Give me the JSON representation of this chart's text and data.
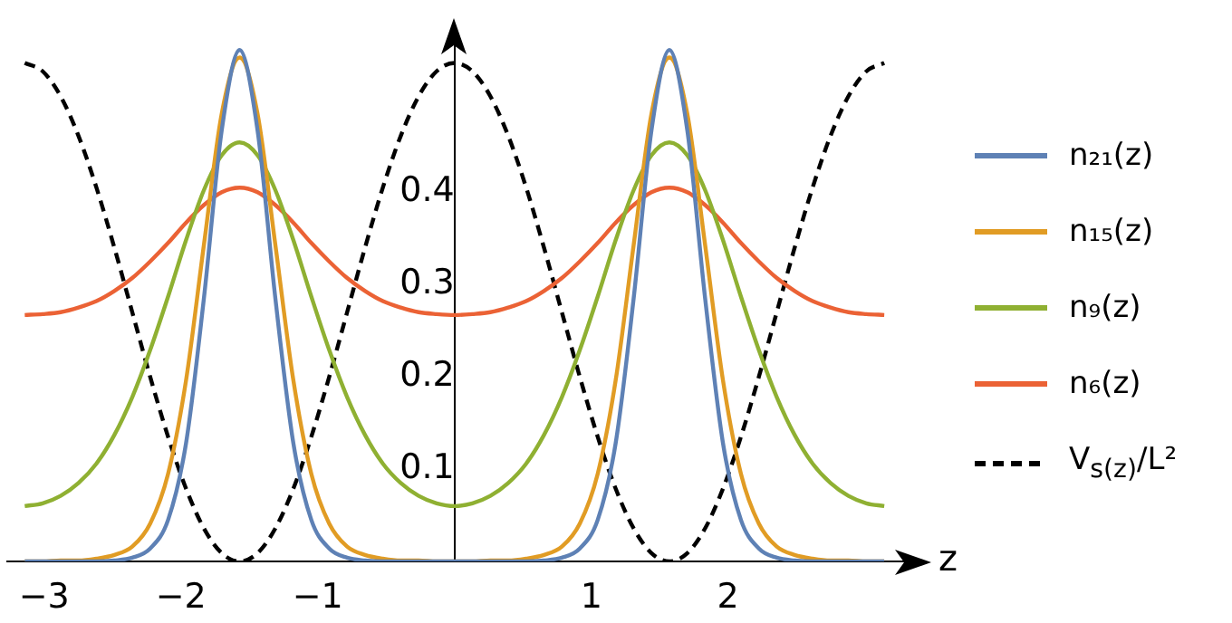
{
  "chart_data": {
    "type": "line",
    "xlabel": "z",
    "x": [
      -3.142,
      -3.011,
      -2.88,
      -2.749,
      -2.618,
      -2.487,
      -2.356,
      -2.225,
      -2.094,
      -1.963,
      -1.833,
      -1.702,
      -1.571,
      -1.44,
      -1.309,
      -1.178,
      -1.047,
      -0.916,
      -0.785,
      -0.654,
      -0.524,
      -0.393,
      -0.262,
      -0.131,
      0,
      0.131,
      0.262,
      0.393,
      0.524,
      0.654,
      0.785,
      0.916,
      1.047,
      1.178,
      1.309,
      1.44,
      1.571,
      1.702,
      1.833,
      1.963,
      2.094,
      2.225,
      2.356,
      2.487,
      2.618,
      2.749,
      2.88,
      3.011,
      3.142
    ],
    "xlim": [
      -3.27,
      3.3
    ],
    "ylim": [
      0,
      0.58
    ],
    "xticks": [
      -3,
      -2,
      -1,
      1,
      2
    ],
    "yticks": [
      0.1,
      0.2,
      0.3,
      0.4
    ],
    "grid": false,
    "legend": "right",
    "marker": "none",
    "series": [
      {
        "name": "n₂₁(z)",
        "color": "#5e81b5",
        "line_style": "solid",
        "values": [
          0,
          0,
          0,
          0,
          0,
          0.001,
          0.004,
          0.014,
          0.045,
          0.128,
          0.284,
          0.467,
          0.554,
          0.467,
          0.284,
          0.128,
          0.045,
          0.014,
          0.004,
          0.001,
          0,
          0,
          0,
          0,
          0,
          0,
          0,
          0,
          0,
          0.001,
          0.004,
          0.014,
          0.045,
          0.128,
          0.284,
          0.467,
          0.554,
          0.467,
          0.284,
          0.128,
          0.045,
          0.014,
          0.004,
          0.001,
          0,
          0,
          0,
          0,
          0
        ]
      },
      {
        "name": "n₁₅(z)",
        "color": "#e19c24",
        "line_style": "solid",
        "values": [
          0,
          0,
          0.001,
          0.001,
          0.003,
          0.007,
          0.016,
          0.041,
          0.095,
          0.196,
          0.342,
          0.485,
          0.546,
          0.485,
          0.342,
          0.196,
          0.095,
          0.041,
          0.016,
          0.007,
          0.003,
          0.001,
          0.001,
          0,
          0,
          0,
          0.001,
          0.001,
          0.003,
          0.007,
          0.016,
          0.041,
          0.095,
          0.196,
          0.342,
          0.485,
          0.546,
          0.485,
          0.342,
          0.196,
          0.095,
          0.041,
          0.016,
          0.007,
          0.003,
          0.001,
          0.001,
          0,
          0
        ]
      },
      {
        "name": "n₉(z)",
        "color": "#8fb032",
        "line_style": "solid",
        "values": [
          0.06,
          0.063,
          0.071,
          0.085,
          0.106,
          0.137,
          0.178,
          0.229,
          0.287,
          0.348,
          0.402,
          0.44,
          0.454,
          0.44,
          0.402,
          0.348,
          0.287,
          0.229,
          0.178,
          0.137,
          0.106,
          0.085,
          0.071,
          0.063,
          0.06,
          0.063,
          0.071,
          0.085,
          0.106,
          0.137,
          0.178,
          0.229,
          0.287,
          0.348,
          0.402,
          0.44,
          0.454,
          0.44,
          0.402,
          0.348,
          0.287,
          0.229,
          0.178,
          0.137,
          0.106,
          0.085,
          0.071,
          0.063,
          0.06
        ]
      },
      {
        "name": "n₆(z)",
        "color": "#eb6235",
        "line_style": "solid",
        "values": [
          0.267,
          0.268,
          0.27,
          0.275,
          0.282,
          0.293,
          0.307,
          0.325,
          0.345,
          0.367,
          0.386,
          0.4,
          0.405,
          0.4,
          0.386,
          0.367,
          0.345,
          0.325,
          0.307,
          0.293,
          0.282,
          0.275,
          0.27,
          0.268,
          0.267,
          0.268,
          0.27,
          0.275,
          0.282,
          0.293,
          0.307,
          0.325,
          0.345,
          0.367,
          0.386,
          0.4,
          0.405,
          0.4,
          0.386,
          0.367,
          0.345,
          0.325,
          0.307,
          0.293,
          0.282,
          0.275,
          0.27,
          0.268,
          0.267
        ]
      },
      {
        "name": "V$_{s(z)}$/L²",
        "color": "#000000",
        "line_style": "dashed",
        "values": [
          0.54,
          0.531,
          0.504,
          0.461,
          0.405,
          0.34,
          0.27,
          0.2,
          0.135,
          0.079,
          0.036,
          0.009,
          0,
          0.009,
          0.036,
          0.079,
          0.135,
          0.2,
          0.27,
          0.34,
          0.405,
          0.461,
          0.504,
          0.531,
          0.54,
          0.531,
          0.504,
          0.461,
          0.405,
          0.34,
          0.27,
          0.2,
          0.135,
          0.079,
          0.036,
          0.009,
          0,
          0.009,
          0.036,
          0.079,
          0.135,
          0.2,
          0.27,
          0.34,
          0.405,
          0.461,
          0.504,
          0.531,
          0.54
        ]
      }
    ]
  }
}
